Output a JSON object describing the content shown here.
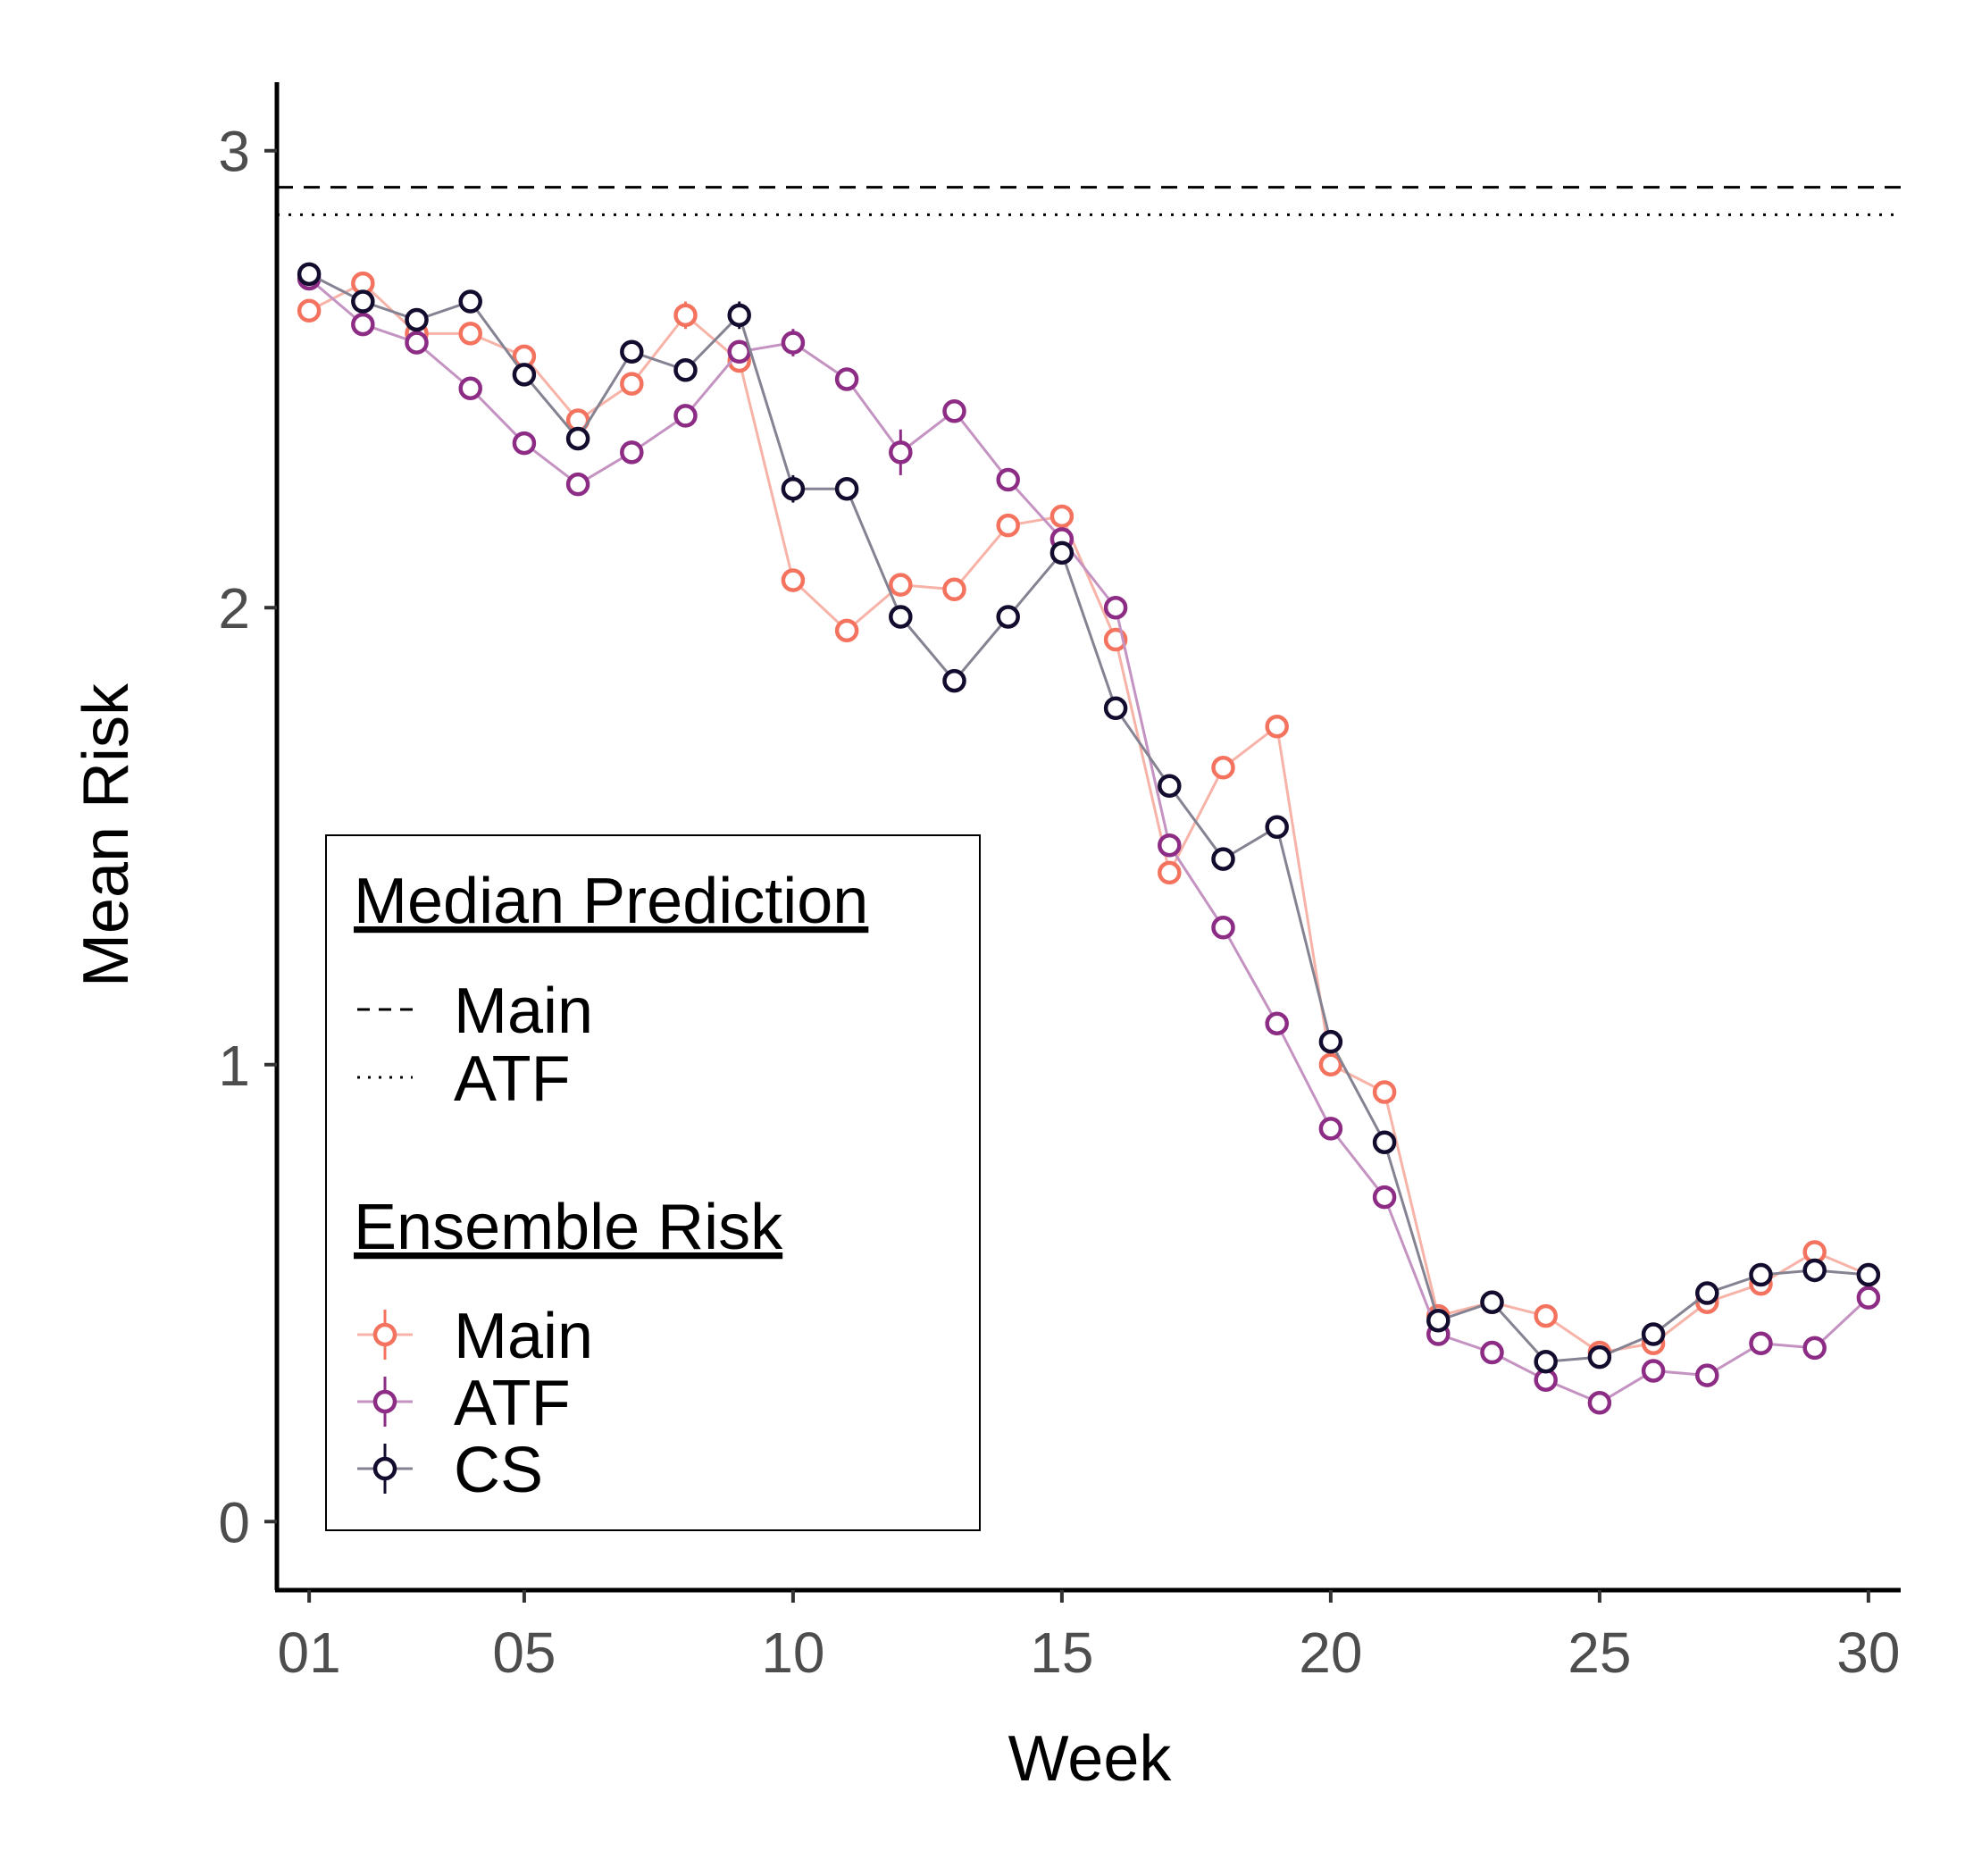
{
  "chart_data": {
    "type": "line",
    "xlabel": "Week",
    "ylabel": "Mean Risk",
    "xlim": [
      0.4,
      30.6
    ],
    "ylim": [
      -0.15,
      3.15
    ],
    "x_ticks": [
      {
        "value": 1,
        "label": "01"
      },
      {
        "value": 5,
        "label": "05"
      },
      {
        "value": 10,
        "label": "10"
      },
      {
        "value": 15,
        "label": "15"
      },
      {
        "value": 20,
        "label": "20"
      },
      {
        "value": 25,
        "label": "25"
      },
      {
        "value": 30,
        "label": "30"
      }
    ],
    "y_ticks": [
      {
        "value": 0,
        "label": "0"
      },
      {
        "value": 1,
        "label": "1"
      },
      {
        "value": 2,
        "label": "2"
      },
      {
        "value": 3,
        "label": "3"
      }
    ],
    "x": [
      1,
      2,
      3,
      4,
      5,
      6,
      7,
      8,
      9,
      10,
      11,
      12,
      13,
      14,
      15,
      16,
      17,
      18,
      19,
      20,
      21,
      22,
      23,
      24,
      25,
      26,
      27,
      28,
      29,
      30
    ],
    "series": [
      {
        "name": "Main",
        "color": "#f4735f",
        "line_color": "#f7b3a8",
        "values": [
          2.65,
          2.71,
          2.6,
          2.6,
          2.55,
          2.41,
          2.49,
          2.64,
          2.54,
          2.06,
          1.95,
          2.05,
          2.04,
          2.18,
          2.2,
          1.93,
          1.42,
          1.65,
          1.74,
          1.0,
          0.94,
          0.45,
          0.48,
          0.45,
          0.37,
          0.39,
          0.48,
          0.52,
          0.59,
          0.54
        ],
        "err": [
          0.01,
          0.02,
          0.01,
          0.02,
          0.02,
          0.02,
          0.02,
          0.03,
          0.02,
          0.01,
          0.01,
          0.02,
          0.01,
          0.01,
          0.02,
          0.02,
          0.01,
          0.01,
          0.01,
          0.01,
          0.01,
          0.01,
          0.01,
          0.01,
          0.01,
          0.01,
          0.01,
          0.01,
          0.01,
          0.01
        ]
      },
      {
        "name": "ATF",
        "color": "#8d2c84",
        "line_color": "#c493c2",
        "values": [
          2.72,
          2.62,
          2.58,
          2.48,
          2.36,
          2.27,
          2.34,
          2.42,
          2.56,
          2.58,
          2.5,
          2.34,
          2.43,
          2.28,
          2.15,
          2.0,
          1.48,
          1.3,
          1.09,
          0.86,
          0.71,
          0.41,
          0.37,
          0.31,
          0.26,
          0.33,
          0.32,
          0.39,
          0.38,
          0.49
        ],
        "err": [
          0.01,
          0.01,
          0.01,
          0.01,
          0.01,
          0.01,
          0.01,
          0.01,
          0.02,
          0.03,
          0.01,
          0.05,
          0.01,
          0.01,
          0.02,
          0.01,
          0.01,
          0.01,
          0.01,
          0.01,
          0.01,
          0.01,
          0.01,
          0.01,
          0.01,
          0.01,
          0.01,
          0.01,
          0.01,
          0.01
        ]
      },
      {
        "name": "CS",
        "color": "#140c2e",
        "line_color": "#858292",
        "values": [
          2.73,
          2.67,
          2.63,
          2.67,
          2.51,
          2.37,
          2.56,
          2.52,
          2.64,
          2.26,
          2.26,
          1.98,
          1.84,
          1.98,
          2.12,
          1.78,
          1.61,
          1.45,
          1.52,
          1.05,
          0.83,
          0.44,
          0.48,
          0.35,
          0.36,
          0.41,
          0.5,
          0.54,
          0.55,
          0.54
        ],
        "err": [
          0.01,
          0.01,
          0.01,
          0.02,
          0.01,
          0.02,
          0.01,
          0.02,
          0.03,
          0.03,
          0.02,
          0.01,
          0.01,
          0.01,
          0.02,
          0.01,
          0.01,
          0.01,
          0.01,
          0.01,
          0.01,
          0.01,
          0.01,
          0.01,
          0.01,
          0.01,
          0.01,
          0.01,
          0.01,
          0.01
        ]
      }
    ],
    "reference_lines": [
      {
        "name": "Main",
        "y": 2.92,
        "style": "dashed"
      },
      {
        "name": "ATF",
        "y": 2.86,
        "style": "dotted"
      }
    ],
    "legend": {
      "placement": "bottom-left",
      "median_title": "Median Prediction",
      "ensemble_title": "Ensemble Risk"
    },
    "grid": false
  }
}
